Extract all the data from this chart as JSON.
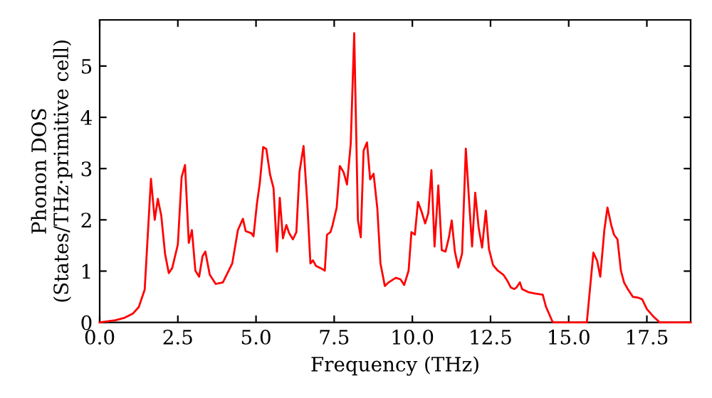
{
  "chart_data": {
    "type": "line",
    "xlabel": "Frequency (THz)",
    "ylabel": "Phonon DOS\n(States/THz·primitive cell)",
    "xlim": [
      0,
      18.9
    ],
    "ylim": [
      0,
      5.9
    ],
    "xticks": [
      {
        "value": 0,
        "label": "0.0"
      },
      2.5,
      {
        "value": 5,
        "label": "5.0"
      },
      7.5,
      {
        "value": 10,
        "label": "10.0"
      },
      12.5,
      {
        "value": 15,
        "label": "15.0"
      },
      17.5
    ],
    "yticks": [
      0,
      1,
      2,
      3,
      4,
      5
    ],
    "grid": false,
    "legend": false,
    "marker": "none",
    "line_style": "solid",
    "series": [
      {
        "color": "#ff0000",
        "x": [
          0,
          0.5,
          0.8,
          1.06,
          1.25,
          1.44,
          1.64,
          1.76,
          1.86,
          1.97,
          2.09,
          2.21,
          2.32,
          2.5,
          2.62,
          2.73,
          2.85,
          2.95,
          3.06,
          3.18,
          3.29,
          3.38,
          3.52,
          3.71,
          3.94,
          4.24,
          4.42,
          4.58,
          4.67,
          4.85,
          4.92,
          5.03,
          5.12,
          5.23,
          5.33,
          5.45,
          5.56,
          5.67,
          5.76,
          5.86,
          5.97,
          6.06,
          6.18,
          6.29,
          6.39,
          6.52,
          6.64,
          6.74,
          6.82,
          6.92,
          7.12,
          7.2,
          7.27,
          7.38,
          7.45,
          7.58,
          7.68,
          7.8,
          7.91,
          8.03,
          8.14,
          8.26,
          8.35,
          8.44,
          8.55,
          8.65,
          8.76,
          8.88,
          8.98,
          9.12,
          9.24,
          9.47,
          9.62,
          9.74,
          9.88,
          9.97,
          10.08,
          10.18,
          10.3,
          10.41,
          10.51,
          10.61,
          10.71,
          10.83,
          10.94,
          11.06,
          11.17,
          11.26,
          11.36,
          11.47,
          11.59,
          11.71,
          11.82,
          11.91,
          12.01,
          12.12,
          12.23,
          12.35,
          12.45,
          12.58,
          12.73,
          12.91,
          13.03,
          13.15,
          13.26,
          13.33,
          13.44,
          13.51,
          13.71,
          13.94,
          14.17,
          14.27,
          14.47,
          14.51,
          15.58,
          15.79,
          15.91,
          16.01,
          16.14,
          16.24,
          16.36,
          16.45,
          16.56,
          16.67,
          16.77,
          16.89,
          17.05,
          17.23,
          17.35,
          17.5,
          17.7,
          17.91,
          18.9
        ],
        "values": [
          0,
          0.04,
          0.09,
          0.17,
          0.3,
          0.64,
          2.8,
          2.0,
          2.41,
          2.08,
          1.34,
          0.96,
          1.06,
          1.52,
          2.83,
          3.07,
          1.55,
          1.8,
          1.01,
          0.89,
          1.29,
          1.38,
          0.93,
          0.75,
          0.78,
          1.15,
          1.8,
          2.02,
          1.78,
          1.74,
          1.68,
          2.32,
          2.71,
          3.42,
          3.38,
          2.88,
          2.62,
          1.38,
          2.43,
          1.64,
          1.9,
          1.74,
          1.62,
          1.76,
          2.93,
          3.44,
          2.32,
          1.15,
          1.21,
          1.1,
          1.04,
          1.01,
          1.71,
          1.76,
          1.9,
          2.24,
          3.05,
          2.93,
          2.69,
          3.49,
          5.64,
          1.99,
          1.66,
          3.35,
          3.51,
          2.79,
          2.9,
          2.22,
          1.15,
          0.71,
          0.78,
          0.87,
          0.84,
          0.73,
          1.01,
          1.76,
          1.71,
          2.35,
          2.15,
          1.93,
          2.13,
          2.97,
          1.48,
          2.67,
          1.41,
          1.38,
          1.66,
          1.99,
          1.38,
          1.07,
          1.34,
          3.39,
          2.32,
          1.48,
          2.53,
          1.85,
          1.46,
          2.18,
          1.43,
          1.12,
          1.01,
          0.93,
          0.82,
          0.68,
          0.65,
          0.68,
          0.78,
          0.65,
          0.59,
          0.56,
          0.54,
          0.31,
          0.03,
          0,
          0,
          1.36,
          1.2,
          0.89,
          1.8,
          2.24,
          1.9,
          1.71,
          1.62,
          1.01,
          0.78,
          0.65,
          0.5,
          0.48,
          0.45,
          0.26,
          0.12,
          0,
          0
        ]
      }
    ]
  }
}
